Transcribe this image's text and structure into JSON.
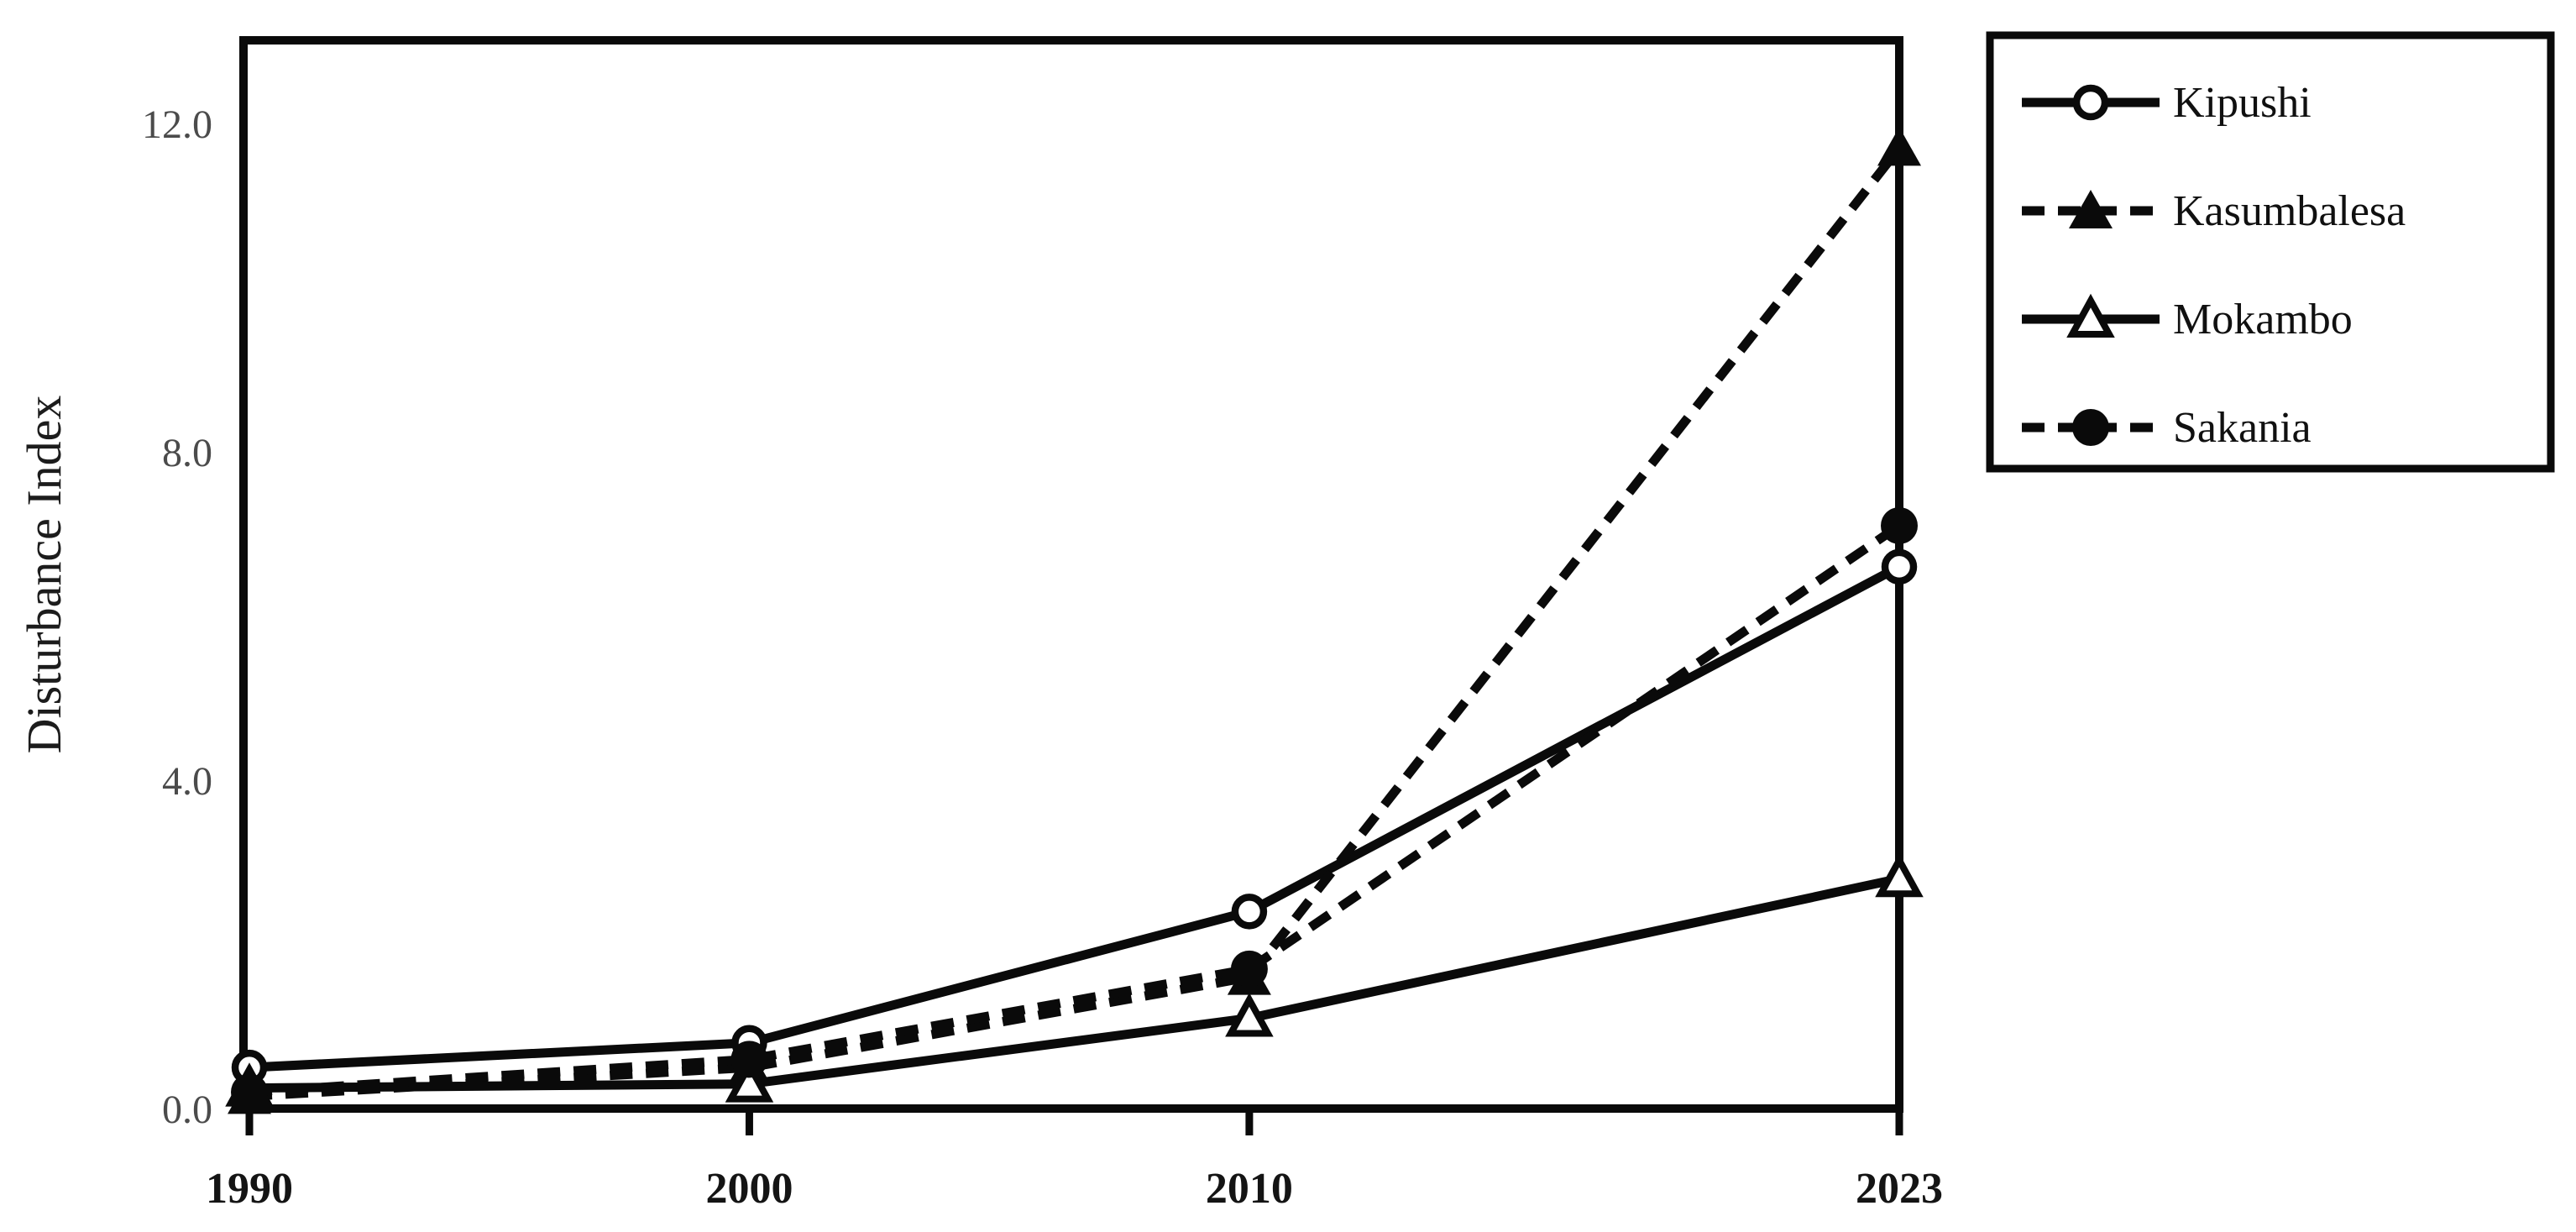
{
  "figure": {
    "background_color": "#ffffff",
    "line_color": "#0a0a0a",
    "y_tick_label_color": "#4b4b4b",
    "x_tick_label_color": "#141414",
    "axis_title_color": "#1c1c1c",
    "legend_text_color": "#101010"
  },
  "chart_data": {
    "type": "line",
    "title": "",
    "xlabel": "",
    "ylabel": "Disturbance Index",
    "x": [
      1990,
      2000,
      2010,
      2023
    ],
    "x_tick_labels": [
      "1990",
      "2000",
      "2010",
      "2023"
    ],
    "y_ticks": [
      0.0,
      4.0,
      8.0,
      12.0
    ],
    "y_tick_labels": [
      "0.0",
      "4.0",
      "8.0",
      "12.0"
    ],
    "ylim": [
      0,
      13
    ],
    "grid": false,
    "legend": {
      "position": "outside-top-right",
      "entries": [
        "Kipushi",
        "Kasumbalesa",
        "Mokambo",
        "Sakania"
      ]
    },
    "series": [
      {
        "name": "Kipushi",
        "line_style": "solid",
        "marker": "open-circle",
        "values": [
          0.5,
          0.8,
          2.4,
          6.6
        ]
      },
      {
        "name": "Kasumbalesa",
        "line_style": "dashed",
        "marker": "filled-triangle",
        "values": [
          0.15,
          0.5,
          1.6,
          11.7
        ]
      },
      {
        "name": "Mokambo",
        "line_style": "solid",
        "marker": "open-triangle",
        "values": [
          0.25,
          0.3,
          1.1,
          2.8
        ]
      },
      {
        "name": "Sakania",
        "line_style": "dashed",
        "marker": "filled-circle",
        "values": [
          0.2,
          0.6,
          1.7,
          7.1
        ]
      }
    ]
  }
}
